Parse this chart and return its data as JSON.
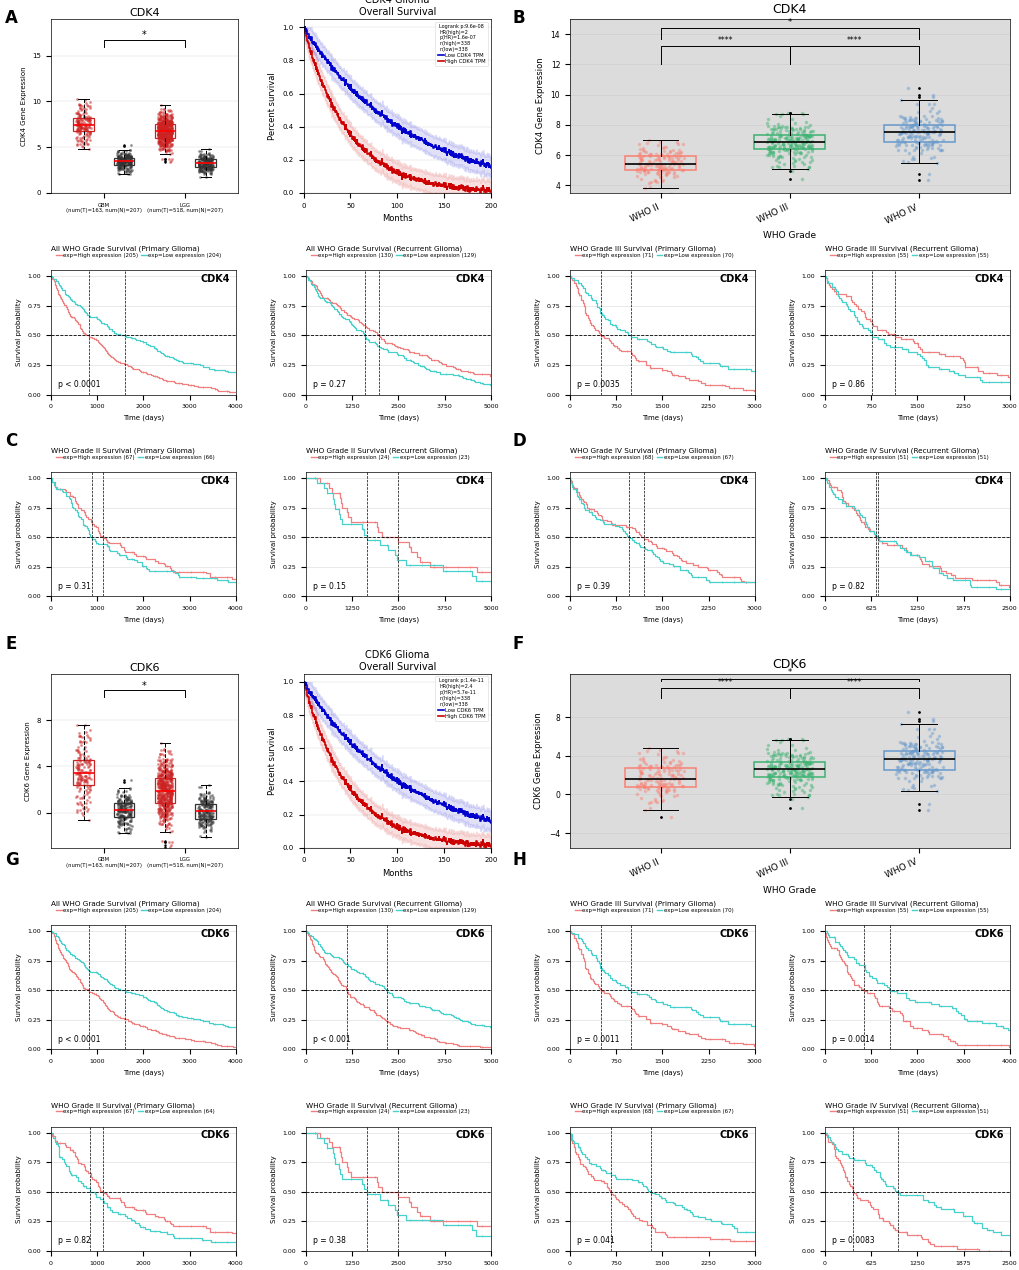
{
  "salmon": "#F08080",
  "teal": "#48D1CC",
  "red_km": "#CC0000",
  "blue_km": "#0000CC",
  "green_box": "#3CB371",
  "blue_box": "#6699CC",
  "pink_box": "#FA8072",
  "box_bg": "#DCDCDC",
  "km_bg": "white",
  "gepia_bg": "white",
  "who_grades": [
    "WHO II",
    "WHO III",
    "WHO IV"
  ],
  "km_legend_cdk4": [
    "Low CDK4 TPM",
    "High CDK4 TPM",
    "Logrank p:9.6e-08",
    "HR(high)=2",
    "p(HR)=1.6e-07",
    "n(high)=338",
    "n(low)=338"
  ],
  "km_legend_cdk6": [
    "Low CDK6 TPM",
    "High CDK6 TPM",
    "Logrank p:1.4e-11",
    "HR(high)=2.4",
    "p(HR)=5.7e-11",
    "n(high)=338",
    "n(low)=338"
  ],
  "survival_C1": {
    "title": "All WHO Grade Survival (Primary Glioma)",
    "high_n": 205,
    "low_n": 204,
    "p": "p < 0.0001",
    "xmax": 4000,
    "gene": "CDK4",
    "high_faster": true
  },
  "survival_C2": {
    "title": "All WHO Grade Survival (Recurrent Glioma)",
    "high_n": 130,
    "low_n": 129,
    "p": "p = 0.27",
    "xmax": 5000,
    "gene": "CDK4",
    "high_faster": false
  },
  "survival_C3": {
    "title": "WHO Grade II Survival (Primary Glioma)",
    "high_n": 67,
    "low_n": 66,
    "p": "p = 0.31",
    "xmax": 4000,
    "gene": "CDK4",
    "high_faster": false
  },
  "survival_C4": {
    "title": "WHO Grade II Survival (Recurrent Glioma)",
    "high_n": 24,
    "low_n": 23,
    "p": "p = 0.15",
    "xmax": 5000,
    "gene": "CDK4",
    "high_faster": false
  },
  "survival_D1": {
    "title": "WHO Grade III Survival (Primary Glioma)",
    "high_n": 71,
    "low_n": 70,
    "p": "p = 0.0035",
    "xmax": 3000,
    "gene": "CDK4",
    "high_faster": true
  },
  "survival_D2": {
    "title": "WHO Grade III Survival (Recurrent Glioma)",
    "high_n": 55,
    "low_n": 55,
    "p": "p = 0.86",
    "xmax": 3000,
    "gene": "CDK4",
    "high_faster": false
  },
  "survival_D3": {
    "title": "WHO Grade IV Survival (Primary Glioma)",
    "high_n": 68,
    "low_n": 67,
    "p": "p = 0.39",
    "xmax": 3000,
    "gene": "CDK4",
    "high_faster": false
  },
  "survival_D4": {
    "title": "WHO Grade IV Survival (Recurrent Glioma)",
    "high_n": 51,
    "low_n": 51,
    "p": "p = 0.82",
    "xmax": 2500,
    "gene": "CDK4",
    "high_faster": false
  },
  "survival_G1": {
    "title": "All WHO Grade Survival (Primary Glioma)",
    "high_n": 205,
    "low_n": 204,
    "p": "p < 0.0001",
    "xmax": 4000,
    "gene": "CDK6",
    "high_faster": true
  },
  "survival_G2": {
    "title": "All WHO Grade Survival (Recurrent Glioma)",
    "high_n": 130,
    "low_n": 129,
    "p": "p < 0.001",
    "xmax": 5000,
    "gene": "CDK6",
    "high_faster": true
  },
  "survival_G3": {
    "title": "WHO Grade II Survival (Primary Glioma)",
    "high_n": 67,
    "low_n": 64,
    "p": "p = 0.82",
    "xmax": 4000,
    "gene": "CDK6",
    "high_faster": false
  },
  "survival_G4": {
    "title": "WHO Grade II Survival (Recurrent Glioma)",
    "high_n": 24,
    "low_n": 23,
    "p": "p = 0.38",
    "xmax": 5000,
    "gene": "CDK6",
    "high_faster": false
  },
  "survival_H1": {
    "title": "WHO Grade III Survival (Primary Glioma)",
    "high_n": 71,
    "low_n": 70,
    "p": "p = 0.0011",
    "xmax": 3000,
    "gene": "CDK6",
    "high_faster": true
  },
  "survival_H2": {
    "title": "WHO Grade III Survival (Recurrent Glioma)",
    "high_n": 55,
    "low_n": 55,
    "p": "p = 0.0014",
    "xmax": 4000,
    "gene": "CDK6",
    "high_faster": true
  },
  "survival_H3": {
    "title": "WHO Grade IV Survival (Primary Glioma)",
    "high_n": 68,
    "low_n": 67,
    "p": "p = 0.041",
    "xmax": 3000,
    "gene": "CDK6",
    "high_faster": true
  },
  "survival_H4": {
    "title": "WHO Grade IV Survival (Recurrent Glioma)",
    "high_n": 51,
    "low_n": 51,
    "p": "p = 0.0083",
    "xmax": 2500,
    "gene": "CDK6",
    "high_faster": true
  }
}
